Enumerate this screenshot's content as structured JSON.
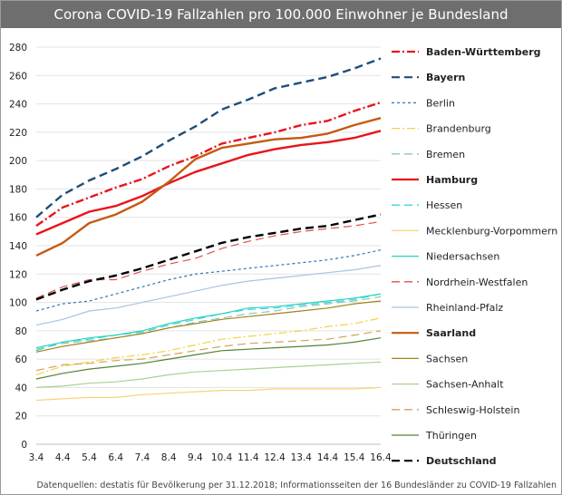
{
  "chart_data": {
    "type": "line",
    "title": "Corona COVID-19 Fallzahlen pro 100.000 Einwohner je Bundesland",
    "source": "Datenquellen: destatis für Bevölkerung per 31.12.2018; Informationsseiten der 16 Bundesländer zu COVID-19 Fallzahlen",
    "x": [
      "3.4",
      "4.4",
      "5.4",
      "6.4",
      "7.4",
      "8.4",
      "9.4",
      "10.4",
      "11.4",
      "12.4",
      "13.4",
      "14.4",
      "15.4",
      "16.4"
    ],
    "ylim": [
      0,
      280
    ],
    "yticks": [
      0,
      20,
      40,
      60,
      80,
      100,
      120,
      140,
      160,
      180,
      200,
      220,
      240,
      260,
      280
    ],
    "grid": true,
    "legend_position": "right",
    "series": [
      {
        "name": "Baden-Württemberg",
        "color": "#e8141b",
        "dash": "dashdot",
        "bold": true,
        "values": [
          154,
          167,
          174,
          181,
          187,
          196,
          203,
          212,
          216,
          220,
          225,
          228,
          235,
          241
        ]
      },
      {
        "name": "Bayern",
        "color": "#1f4e79",
        "dash": "longdash",
        "bold": true,
        "values": [
          160,
          176,
          186,
          194,
          203,
          214,
          224,
          236,
          243,
          251,
          255,
          259,
          265,
          272
        ]
      },
      {
        "name": "Berlin",
        "color": "#2e75b6",
        "dash": "shortdash",
        "bold": false,
        "values": [
          94,
          99,
          101,
          106,
          111,
          116,
          120,
          122,
          124,
          126,
          128,
          130,
          133,
          137
        ]
      },
      {
        "name": "Brandenburg",
        "color": "#f5d23c",
        "dash": "dashdot",
        "bold": false,
        "values": [
          49,
          55,
          58,
          61,
          63,
          66,
          70,
          74,
          76,
          78,
          80,
          83,
          85,
          89
        ]
      },
      {
        "name": "Bremen",
        "color": "#8fc3b8",
        "dash": "longdash",
        "bold": false,
        "values": [
          67,
          71,
          73,
          75,
          78,
          82,
          86,
          89,
          92,
          94,
          97,
          99,
          101,
          104
        ]
      },
      {
        "name": "Hamburg",
        "color": "#e8141b",
        "dash": "solid",
        "bold": true,
        "values": [
          148,
          156,
          164,
          168,
          175,
          184,
          192,
          198,
          204,
          208,
          211,
          213,
          216,
          221
        ]
      },
      {
        "name": "Hessen",
        "color": "#3dd6e0",
        "dash": "longdash",
        "bold": false,
        "values": [
          66,
          72,
          74,
          77,
          79,
          84,
          88,
          92,
          95,
          96,
          98,
          100,
          102,
          106
        ]
      },
      {
        "name": "Mecklenburg-Vorpommern",
        "color": "#f8d27a",
        "dash": "solid",
        "bold": false,
        "values": [
          31,
          32,
          33,
          33,
          35,
          36,
          37,
          38,
          38,
          39,
          39,
          39,
          39,
          40
        ]
      },
      {
        "name": "Niedersachsen",
        "color": "#2ad1b9",
        "dash": "solid",
        "bold": false,
        "values": [
          68,
          72,
          75,
          77,
          80,
          85,
          89,
          92,
          96,
          97,
          99,
          101,
          103,
          106
        ]
      },
      {
        "name": "Nordrhein-Westfalen",
        "color": "#d9534f",
        "dash": "longdash",
        "bold": false,
        "values": [
          103,
          111,
          116,
          116,
          122,
          127,
          131,
          138,
          143,
          147,
          150,
          152,
          154,
          157
        ]
      },
      {
        "name": "Rheinland-Pfalz",
        "color": "#a8c4e0",
        "dash": "solid",
        "bold": false,
        "values": [
          84,
          88,
          94,
          96,
          100,
          104,
          108,
          112,
          115,
          117,
          119,
          121,
          123,
          126
        ]
      },
      {
        "name": "Saarland",
        "color": "#c55a11",
        "dash": "solid",
        "bold": true,
        "values": [
          133,
          142,
          156,
          162,
          171,
          185,
          201,
          209,
          212,
          215,
          216,
          219,
          225,
          230
        ]
      },
      {
        "name": "Sachsen",
        "color": "#a08418",
        "dash": "solid",
        "bold": false,
        "values": [
          65,
          69,
          72,
          75,
          78,
          82,
          85,
          88,
          90,
          92,
          94,
          96,
          99,
          101
        ]
      },
      {
        "name": "Sachsen-Anhalt",
        "color": "#a9d18e",
        "dash": "solid",
        "bold": false,
        "values": [
          40,
          41,
          43,
          44,
          46,
          49,
          51,
          52,
          53,
          54,
          55,
          56,
          57,
          58
        ]
      },
      {
        "name": "Schleswig-Holstein",
        "color": "#d4a25a",
        "dash": "longdash",
        "bold": false,
        "values": [
          52,
          56,
          57,
          59,
          60,
          63,
          66,
          69,
          71,
          72,
          73,
          74,
          77,
          80
        ]
      },
      {
        "name": "Thüringen",
        "color": "#548235",
        "dash": "solid",
        "bold": false,
        "values": [
          46,
          50,
          53,
          55,
          57,
          60,
          63,
          66,
          67,
          68,
          69,
          70,
          72,
          75
        ]
      },
      {
        "name": "Deutschland",
        "color": "#000000",
        "dash": "longdash",
        "bold": true,
        "values": [
          102,
          109,
          115,
          119,
          124,
          130,
          136,
          142,
          146,
          149,
          152,
          154,
          158,
          162
        ]
      }
    ]
  }
}
